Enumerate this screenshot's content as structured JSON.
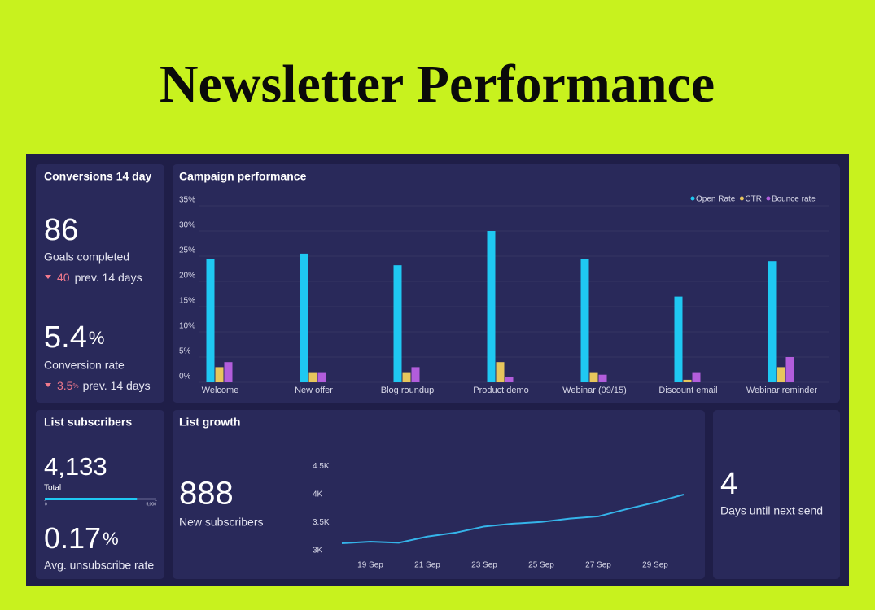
{
  "title": "Newsletter Performance",
  "conversions": {
    "title": "Conversions 14 day",
    "goals": {
      "value": "86",
      "label": "Goals completed",
      "prev_value": "40",
      "prev_label": "prev. 14 days"
    },
    "rate": {
      "value": "5.4",
      "unit": "%",
      "label": "Conversion rate",
      "prev_value": "3.5",
      "prev_unit": "%",
      "prev_label": "prev. 14 days"
    }
  },
  "subscribers": {
    "title": "List subscribers",
    "total": {
      "value": 4133,
      "label": "4,133"
    },
    "total_label": "Total",
    "scale": [
      {
        "value": 0,
        "label": "0"
      },
      {
        "value": 5000,
        "label": "5,000"
      }
    ],
    "unsubscribe": {
      "value": "0.17",
      "unit": "%",
      "label": "Avg. unsubscribe rate"
    }
  },
  "next_send": {
    "value": "4",
    "label": "Days until next send"
  },
  "chart_data": [
    {
      "type": "bar",
      "title": "Campaign performance",
      "categories": [
        "Welcome",
        "New offer",
        "Blog roundup",
        "Product demo",
        "Webinar (09/15)",
        "Discount email",
        "Webinar reminder"
      ],
      "series": [
        {
          "name": "Open Rate",
          "color": "#1fc8f2",
          "values": [
            24.4,
            25.5,
            23.2,
            30,
            24.5,
            17,
            24
          ]
        },
        {
          "name": "CTR",
          "color": "#e7c65c",
          "values": [
            3,
            2,
            2,
            4,
            2,
            0.5,
            3
          ]
        },
        {
          "name": "Bounce rate",
          "color": "#b25ddc",
          "values": [
            4,
            2,
            3,
            1,
            1.5,
            2,
            5
          ]
        }
      ],
      "ylim": [
        0,
        35
      ],
      "yticks": [
        {
          "value": 0,
          "label": "0%"
        },
        {
          "value": 5,
          "label": "5%"
        },
        {
          "value": 10,
          "label": "10%"
        },
        {
          "value": 15,
          "label": "15%"
        },
        {
          "value": 20,
          "label": "20%"
        },
        {
          "value": 25,
          "label": "25%"
        },
        {
          "value": 30,
          "label": "30%"
        },
        {
          "value": 35,
          "label": "35%"
        }
      ],
      "grid": true,
      "legend": "top-right"
    },
    {
      "type": "line",
      "title": "List growth",
      "headline": "888",
      "headline_label": "New subscribers",
      "categories": [
        null,
        "19 Sep",
        null,
        "21 Sep",
        null,
        "23 Sep",
        null,
        "25 Sep",
        null,
        "27 Sep",
        null,
        "29 Sep",
        null
      ],
      "values": [
        3130,
        3160,
        3140,
        3250,
        3320,
        3430,
        3480,
        3510,
        3570,
        3610,
        3740,
        3860,
        4000
      ],
      "color": "#35b4ea",
      "ylim": [
        2950,
        4550
      ],
      "yticks": [
        {
          "value": 3000,
          "label": "3K"
        },
        {
          "value": 3500,
          "label": "3.5K"
        },
        {
          "value": 4000,
          "label": "4K"
        },
        {
          "value": 4500,
          "label": "4.5K"
        }
      ]
    }
  ]
}
